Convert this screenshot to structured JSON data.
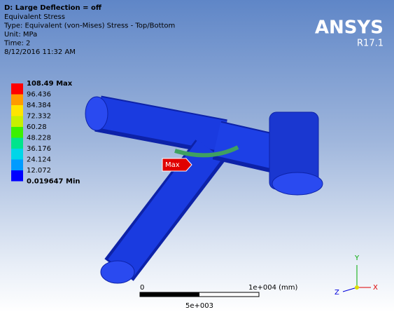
{
  "header": {
    "title": "D: Large Deflection = off",
    "lines": [
      "Equivalent Stress",
      "Type: Equivalent (von-Mises) Stress - Top/Bottom",
      "Unit: MPa",
      "Time: 2",
      "8/12/2016 11:32 AM"
    ]
  },
  "logo": {
    "name": "ANSYS",
    "version": "R17.1"
  },
  "legend": {
    "entries": [
      "108.49 Max",
      "96.436",
      "84.384",
      "72.332",
      "60.28",
      "48.228",
      "36.176",
      "24.124",
      "12.072",
      "0.019647 Min"
    ]
  },
  "probe": {
    "label": "Max"
  },
  "scale_bar": {
    "start": "0",
    "end": "1e+004 (mm)",
    "middle": "5e+003"
  },
  "triad": {
    "x": "X",
    "y": "Y",
    "z": "Z"
  }
}
